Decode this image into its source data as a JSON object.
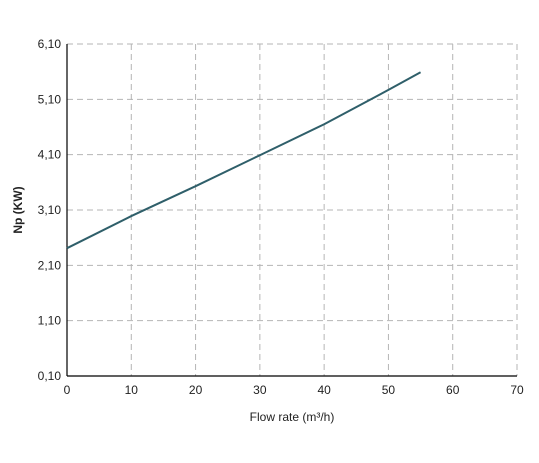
{
  "chart_data": {
    "type": "line",
    "x_label": "Flow rate (m³/h)",
    "y_label": "Np (KW)",
    "x": [
      0,
      10,
      20,
      30,
      40,
      50,
      55
    ],
    "series": [
      {
        "name": "Np",
        "color": "#2f5f6a",
        "values": [
          2.41,
          2.99,
          3.53,
          4.09,
          4.65,
          5.27,
          5.59
        ]
      }
    ],
    "xlim": [
      0,
      70
    ],
    "xticks": [
      0,
      10,
      20,
      30,
      40,
      50,
      60,
      70
    ],
    "ylim": [
      0.1,
      6.1
    ],
    "yticks": [
      {
        "value": 0.1,
        "label": "0,10"
      },
      {
        "value": 1.1,
        "label": "1,10"
      },
      {
        "value": 2.1,
        "label": "2,10"
      },
      {
        "value": 3.1,
        "label": "3,10"
      },
      {
        "value": 4.1,
        "label": "4,10"
      },
      {
        "value": 5.1,
        "label": "5,10"
      },
      {
        "value": 6.1,
        "label": "6,10"
      }
    ],
    "grid": true
  }
}
